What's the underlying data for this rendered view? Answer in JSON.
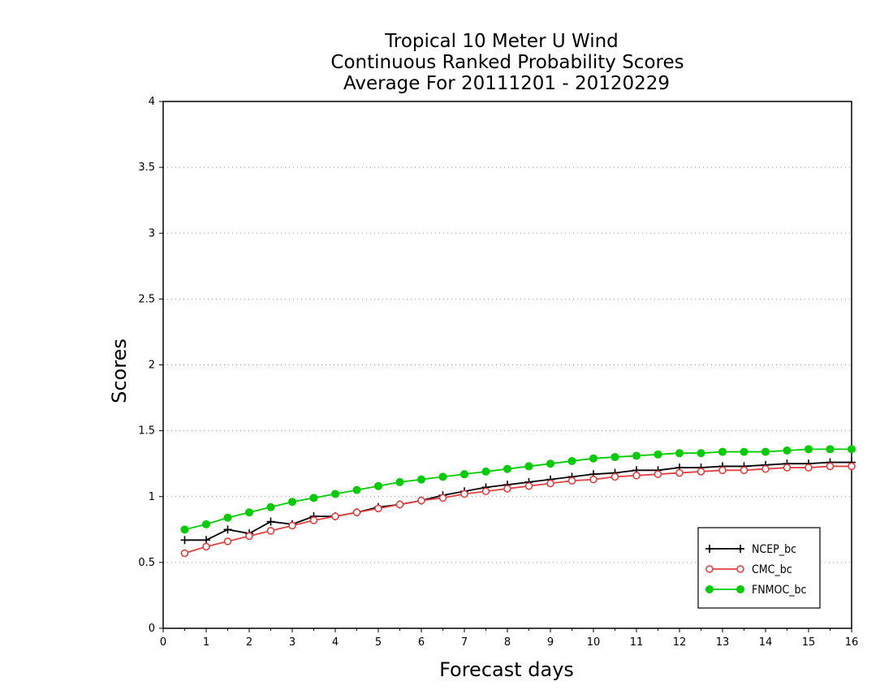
{
  "chart_data": {
    "type": "line",
    "title_lines": [
      "Tropical 10 Meter U Wind",
      "Continuous Ranked Probability Scores",
      "Average For 20111201 - 20120229"
    ],
    "xlabel": "Forecast days",
    "ylabel": "Scores",
    "xlim": [
      0,
      16
    ],
    "ylim": [
      0,
      4
    ],
    "x_ticks": [
      "0",
      "1",
      "2",
      "3",
      "4",
      "5",
      "6",
      "7",
      "8",
      "9",
      "10",
      "11",
      "12",
      "13",
      "14",
      "15",
      "16"
    ],
    "y_ticks": [
      "0",
      "0.5",
      "1",
      "1.5",
      "2",
      "2.5",
      "3",
      "3.5",
      "4"
    ],
    "y_tick_values": [
      0,
      0.5,
      1,
      1.5,
      2,
      2.5,
      3,
      3.5,
      4
    ],
    "grid": "horizontal dotted",
    "legend_position": "bottom-right",
    "x": [
      0.5,
      1,
      1.5,
      2,
      2.5,
      3,
      3.5,
      4,
      4.5,
      5,
      5.5,
      6,
      6.5,
      7,
      7.5,
      8,
      8.5,
      9,
      9.5,
      10,
      10.5,
      11,
      11.5,
      12,
      12.5,
      13,
      13.5,
      14,
      14.5,
      15,
      15.5,
      16
    ],
    "series": [
      {
        "name": "NCEP_bc",
        "color": "#000000",
        "marker": "plus",
        "values": [
          0.67,
          0.67,
          0.75,
          0.72,
          0.81,
          0.79,
          0.85,
          0.85,
          0.88,
          0.92,
          0.94,
          0.97,
          1.01,
          1.04,
          1.07,
          1.09,
          1.11,
          1.13,
          1.15,
          1.17,
          1.18,
          1.2,
          1.2,
          1.22,
          1.22,
          1.23,
          1.23,
          1.24,
          1.25,
          1.25,
          1.26,
          1.26
        ]
      },
      {
        "name": "CMC_bc",
        "color": "#e04040",
        "marker": "open-circle",
        "values": [
          0.57,
          0.62,
          0.66,
          0.7,
          0.74,
          0.78,
          0.82,
          0.85,
          0.88,
          0.91,
          0.94,
          0.97,
          0.99,
          1.02,
          1.04,
          1.06,
          1.08,
          1.1,
          1.12,
          1.13,
          1.15,
          1.16,
          1.17,
          1.18,
          1.19,
          1.2,
          1.2,
          1.21,
          1.22,
          1.22,
          1.23,
          1.23
        ]
      },
      {
        "name": "FNMOC_bc",
        "color": "#00cc00",
        "marker": "filled-circle",
        "values": [
          0.75,
          0.79,
          0.84,
          0.88,
          0.92,
          0.96,
          0.99,
          1.02,
          1.05,
          1.08,
          1.11,
          1.13,
          1.15,
          1.17,
          1.19,
          1.21,
          1.23,
          1.25,
          1.27,
          1.29,
          1.3,
          1.31,
          1.32,
          1.33,
          1.33,
          1.34,
          1.34,
          1.34,
          1.35,
          1.36,
          1.36,
          1.36
        ]
      }
    ]
  }
}
